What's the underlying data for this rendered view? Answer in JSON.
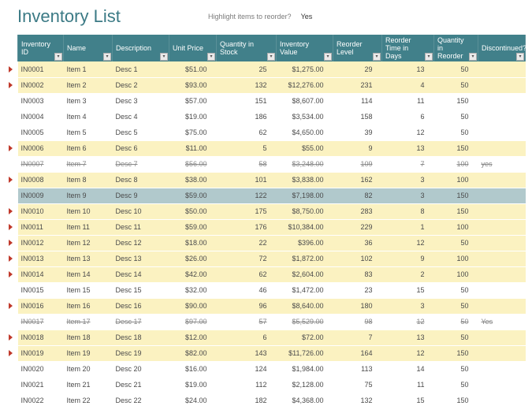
{
  "title": "Inventory List",
  "highlight_label": "Highlight items to reorder?",
  "highlight_value": "Yes",
  "columns": [
    {
      "label": "Inventory ID",
      "align": "txt",
      "w": "c0"
    },
    {
      "label": "Name",
      "align": "txt",
      "w": "c1"
    },
    {
      "label": "Description",
      "align": "txt",
      "w": "c2"
    },
    {
      "label": "Unit Price",
      "align": "num",
      "w": "c3"
    },
    {
      "label": "Quantity in Stock",
      "align": "num",
      "w": "c4"
    },
    {
      "label": "Inventory Value",
      "align": "num",
      "w": "c5"
    },
    {
      "label": "Reorder Level",
      "align": "num",
      "w": "c6"
    },
    {
      "label": "Reorder Time in Days",
      "align": "num",
      "w": "c7"
    },
    {
      "label": "Quantity in Reorder",
      "align": "num",
      "w": "c8"
    },
    {
      "label": "Discontinued?",
      "align": "txt",
      "w": "c9"
    }
  ],
  "rows": [
    {
      "flag": true,
      "hl": true,
      "strike": false,
      "cells": [
        "IN0001",
        "Item 1",
        "Desc 1",
        "$51.00",
        "25",
        "$1,275.00",
        "29",
        "13",
        "50",
        ""
      ]
    },
    {
      "flag": true,
      "hl": true,
      "strike": false,
      "cells": [
        "IN0002",
        "Item 2",
        "Desc 2",
        "$93.00",
        "132",
        "$12,276.00",
        "231",
        "4",
        "50",
        ""
      ]
    },
    {
      "flag": false,
      "hl": false,
      "strike": false,
      "cells": [
        "IN0003",
        "Item 3",
        "Desc 3",
        "$57.00",
        "151",
        "$8,607.00",
        "114",
        "11",
        "150",
        ""
      ]
    },
    {
      "flag": false,
      "hl": false,
      "strike": false,
      "cells": [
        "IN0004",
        "Item 4",
        "Desc 4",
        "$19.00",
        "186",
        "$3,534.00",
        "158",
        "6",
        "50",
        ""
      ]
    },
    {
      "flag": false,
      "hl": false,
      "strike": false,
      "cells": [
        "IN0005",
        "Item 5",
        "Desc 5",
        "$75.00",
        "62",
        "$4,650.00",
        "39",
        "12",
        "50",
        ""
      ]
    },
    {
      "flag": true,
      "hl": true,
      "strike": false,
      "cells": [
        "IN0006",
        "Item 6",
        "Desc 6",
        "$11.00",
        "5",
        "$55.00",
        "9",
        "13",
        "150",
        ""
      ]
    },
    {
      "flag": false,
      "hl": false,
      "strike": true,
      "cells": [
        "IN0007",
        "Item 7",
        "Desc 7",
        "$56.00",
        "58",
        "$3,248.00",
        "109",
        "7",
        "100",
        "yes"
      ]
    },
    {
      "flag": true,
      "hl": true,
      "strike": false,
      "cells": [
        "IN0008",
        "Item 8",
        "Desc 8",
        "$38.00",
        "101",
        "$3,838.00",
        "162",
        "3",
        "100",
        ""
      ]
    },
    {
      "flag": false,
      "hl": false,
      "sub": true,
      "strike": false,
      "cells": [
        "IN0009",
        "Item 9",
        "Desc 9",
        "$59.00",
        "122",
        "$7,198.00",
        "82",
        "3",
        "150",
        ""
      ]
    },
    {
      "flag": true,
      "hl": true,
      "strike": false,
      "cells": [
        "IN0010",
        "Item 10",
        "Desc 10",
        "$50.00",
        "175",
        "$8,750.00",
        "283",
        "8",
        "150",
        ""
      ]
    },
    {
      "flag": true,
      "hl": true,
      "strike": false,
      "cells": [
        "IN0011",
        "Item 11",
        "Desc 11",
        "$59.00",
        "176",
        "$10,384.00",
        "229",
        "1",
        "100",
        ""
      ]
    },
    {
      "flag": true,
      "hl": true,
      "strike": false,
      "cells": [
        "IN0012",
        "Item 12",
        "Desc 12",
        "$18.00",
        "22",
        "$396.00",
        "36",
        "12",
        "50",
        ""
      ]
    },
    {
      "flag": true,
      "hl": true,
      "strike": false,
      "cells": [
        "IN0013",
        "Item 13",
        "Desc 13",
        "$26.00",
        "72",
        "$1,872.00",
        "102",
        "9",
        "100",
        ""
      ]
    },
    {
      "flag": true,
      "hl": true,
      "strike": false,
      "cells": [
        "IN0014",
        "Item 14",
        "Desc 14",
        "$42.00",
        "62",
        "$2,604.00",
        "83",
        "2",
        "100",
        ""
      ]
    },
    {
      "flag": false,
      "hl": false,
      "strike": false,
      "cells": [
        "IN0015",
        "Item 15",
        "Desc 15",
        "$32.00",
        "46",
        "$1,472.00",
        "23",
        "15",
        "50",
        ""
      ]
    },
    {
      "flag": true,
      "hl": true,
      "strike": false,
      "cells": [
        "IN0016",
        "Item 16",
        "Desc 16",
        "$90.00",
        "96",
        "$8,640.00",
        "180",
        "3",
        "50",
        ""
      ]
    },
    {
      "flag": false,
      "hl": false,
      "strike": true,
      "cells": [
        "IN0017",
        "Item 17",
        "Desc 17",
        "$97.00",
        "57",
        "$5,529.00",
        "98",
        "12",
        "50",
        "Yes"
      ]
    },
    {
      "flag": true,
      "hl": true,
      "strike": false,
      "cells": [
        "IN0018",
        "Item 18",
        "Desc 18",
        "$12.00",
        "6",
        "$72.00",
        "7",
        "13",
        "50",
        ""
      ]
    },
    {
      "flag": true,
      "hl": true,
      "strike": false,
      "cells": [
        "IN0019",
        "Item 19",
        "Desc 19",
        "$82.00",
        "143",
        "$11,726.00",
        "164",
        "12",
        "150",
        ""
      ]
    },
    {
      "flag": false,
      "hl": false,
      "strike": false,
      "cells": [
        "IN0020",
        "Item 20",
        "Desc 20",
        "$16.00",
        "124",
        "$1,984.00",
        "113",
        "14",
        "50",
        ""
      ]
    },
    {
      "flag": false,
      "hl": false,
      "strike": false,
      "cells": [
        "IN0021",
        "Item 21",
        "Desc 21",
        "$19.00",
        "112",
        "$2,128.00",
        "75",
        "11",
        "50",
        ""
      ]
    },
    {
      "flag": false,
      "hl": false,
      "strike": false,
      "cells": [
        "IN0022",
        "Item 22",
        "Desc 22",
        "$24.00",
        "182",
        "$4,368.00",
        "132",
        "15",
        "150",
        ""
      ]
    }
  ]
}
